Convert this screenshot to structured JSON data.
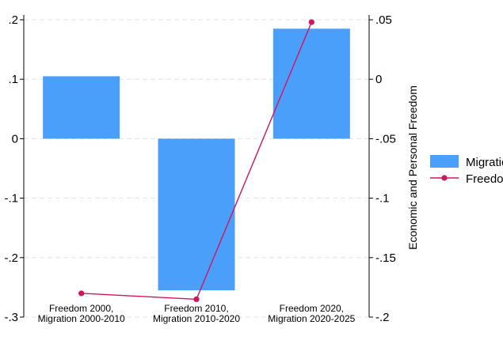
{
  "chart_data": {
    "type": "bar+line",
    "categories": [
      [
        "Freedom 2000,",
        "Migration 2000-2010"
      ],
      [
        "Freedom 2010,",
        "Migration 2010-2020"
      ],
      [
        "Freedom 2020,",
        "Migration 2020-2025"
      ]
    ],
    "series": [
      {
        "name": "Migratio",
        "type": "bar",
        "axis": "left",
        "values": [
          0.105,
          -0.255,
          0.185
        ],
        "color": "#4a9ffa"
      },
      {
        "name": "Freedo",
        "type": "line",
        "axis": "right",
        "values": [
          -0.18,
          -0.185,
          0.048
        ],
        "color": "#d6125f"
      }
    ],
    "left_axis": {
      "ylim": [
        -0.3,
        0.2
      ],
      "ticks": [
        0.2,
        0.1,
        0,
        -0.1,
        -0.2,
        -0.3
      ],
      "tick_labels": [
        ".2",
        ".1",
        "0",
        "-.1",
        "-.2",
        "-.3"
      ]
    },
    "right_axis": {
      "ylim": [
        -0.2,
        0.05
      ],
      "ticks": [
        0.05,
        0,
        -0.05,
        -0.1,
        -0.15,
        -0.2
      ],
      "tick_labels": [
        ".05",
        "0",
        "-.05",
        "-.1",
        "-.15",
        "-.2"
      ],
      "label": "Economic and Personal Freedom"
    },
    "grid": true,
    "legend": "right"
  }
}
